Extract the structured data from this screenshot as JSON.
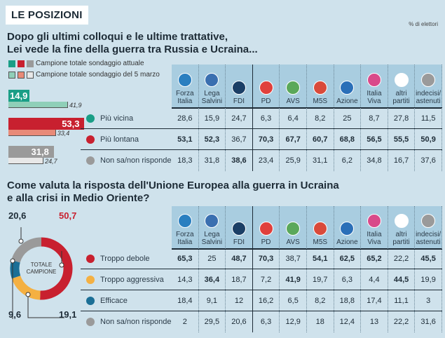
{
  "kicker": "LE POSIZIONI",
  "unit": "% di elettori",
  "colors": {
    "green": "#1a9e86",
    "green_prev": "#8fcfb8",
    "red": "#c8202f",
    "red_prev": "#e88a78",
    "gray": "#9a9a9a",
    "gray_prev": "#e8e8e8",
    "orange": "#f4b042",
    "blue": "#1b6f96"
  },
  "parties": [
    {
      "label": "Forza Italia",
      "logo": "#2a7fc0"
    },
    {
      "label": "Lega Salvini",
      "logo": "#3a6fb0"
    },
    {
      "label": "FDI",
      "logo": "#1b3f66"
    },
    {
      "label": "PD",
      "logo": "#e0403c"
    },
    {
      "label": "AVS",
      "logo": "#5aa85a"
    },
    {
      "label": "M5S",
      "logo": "#d94a3a"
    },
    {
      "label": "Azione",
      "logo": "#2a6fb8"
    },
    {
      "label": "Italia Viva",
      "logo": "#d94a8a"
    },
    {
      "label": "altri partiti",
      "logo": "#ffffff"
    },
    {
      "label": "indecisi/ astenuti",
      "logo": "#9a9a9a"
    }
  ],
  "q1": {
    "title_1": "Dopo gli ultimi colloqui e le ultime trattative,",
    "title_2": "Lei vede la fine della guerra tra Russia e Ucraina...",
    "legend_current": "Campione totale sondaggio attuale",
    "legend_previous": "Campione totale sondaggio del 5 marzo"
  },
  "q2": {
    "title_1": "Come valuta la risposta dell'Unione Europea alla guerra in Ucraina",
    "title_2": "e alla crisi in Medio Oriente?",
    "donut_center_1": "TOTALE",
    "donut_center_2": "CAMPIONE"
  },
  "chart_data": [
    {
      "type": "bar",
      "series": [
        {
          "name": "Campione totale sondaggio attuale",
          "values": [
            14.9,
            53.3,
            31.8
          ]
        },
        {
          "name": "Campione totale sondaggio del 5 marzo",
          "values": [
            41.9,
            33.4,
            24.7
          ]
        }
      ],
      "categories": [
        "Più vicina",
        "Più lontana",
        "Non sa/non risponde"
      ],
      "labels_current": [
        "14,9",
        "53,3",
        "31,8"
      ],
      "labels_previous": [
        "41,9",
        "33,4",
        "24,7"
      ]
    },
    {
      "type": "table",
      "rows": [
        {
          "label": "Più vicina",
          "color": "#1a9e86",
          "values": [
            "28,6",
            "15,9",
            "24,7",
            "6,3",
            "6,4",
            "8,2",
            "25",
            "8,7",
            "27,8",
            "11,5"
          ],
          "bold": [
            0,
            0,
            0,
            0,
            0,
            0,
            0,
            0,
            0,
            0
          ]
        },
        {
          "label": "Più lontana",
          "color": "#c8202f",
          "values": [
            "53,1",
            "52,3",
            "36,7",
            "70,3",
            "67,7",
            "60,7",
            "68,8",
            "56,5",
            "55,5",
            "50,9"
          ],
          "bold": [
            1,
            1,
            0,
            1,
            1,
            1,
            1,
            1,
            1,
            1
          ]
        },
        {
          "label": "Non sa/non risponde",
          "color": "#9a9a9a",
          "values": [
            "18,3",
            "31,8",
            "38,6",
            "23,4",
            "25,9",
            "31,1",
            "6,2",
            "34,8",
            "16,7",
            "37,6"
          ],
          "bold": [
            0,
            0,
            1,
            0,
            0,
            0,
            0,
            0,
            0,
            0
          ]
        }
      ]
    },
    {
      "type": "pie",
      "categories": [
        "Troppo debole",
        "Troppo aggressiva",
        "Efficace",
        "Non sa/non risponde"
      ],
      "values": [
        50.7,
        19.1,
        9.6,
        20.6
      ],
      "labels": [
        "50,7",
        "19,1",
        "9,6",
        "20,6"
      ],
      "colors": [
        "#c8202f",
        "#f4b042",
        "#1b6f96",
        "#9a9a9a"
      ]
    },
    {
      "type": "table",
      "rows": [
        {
          "label": "Troppo debole",
          "color": "#c8202f",
          "values": [
            "65,3",
            "25",
            "48,7",
            "70,3",
            "38,7",
            "54,1",
            "62,5",
            "65,2",
            "22,2",
            "45,5"
          ],
          "bold": [
            1,
            0,
            1,
            1,
            0,
            1,
            1,
            1,
            0,
            1
          ]
        },
        {
          "label": "Troppo aggressiva",
          "color": "#f4b042",
          "values": [
            "14,3",
            "36,4",
            "18,7",
            "7,2",
            "41,9",
            "19,7",
            "6,3",
            "4,4",
            "44,5",
            "19,9"
          ],
          "bold": [
            0,
            1,
            0,
            0,
            1,
            0,
            0,
            0,
            1,
            0
          ]
        },
        {
          "label": "Efficace",
          "color": "#1b6f96",
          "values": [
            "18,4",
            "9,1",
            "12",
            "16,2",
            "6,5",
            "8,2",
            "18,8",
            "17,4",
            "11,1",
            "3"
          ],
          "bold": [
            0,
            0,
            0,
            0,
            0,
            0,
            0,
            0,
            0,
            0
          ]
        },
        {
          "label": "Non sa/non risponde",
          "color": "#9a9a9a",
          "values": [
            "2",
            "29,5",
            "20,6",
            "6,3",
            "12,9",
            "18",
            "12,4",
            "13",
            "22,2",
            "31,6"
          ],
          "bold": [
            0,
            0,
            0,
            0,
            0,
            0,
            0,
            0,
            0,
            0
          ]
        }
      ]
    }
  ]
}
